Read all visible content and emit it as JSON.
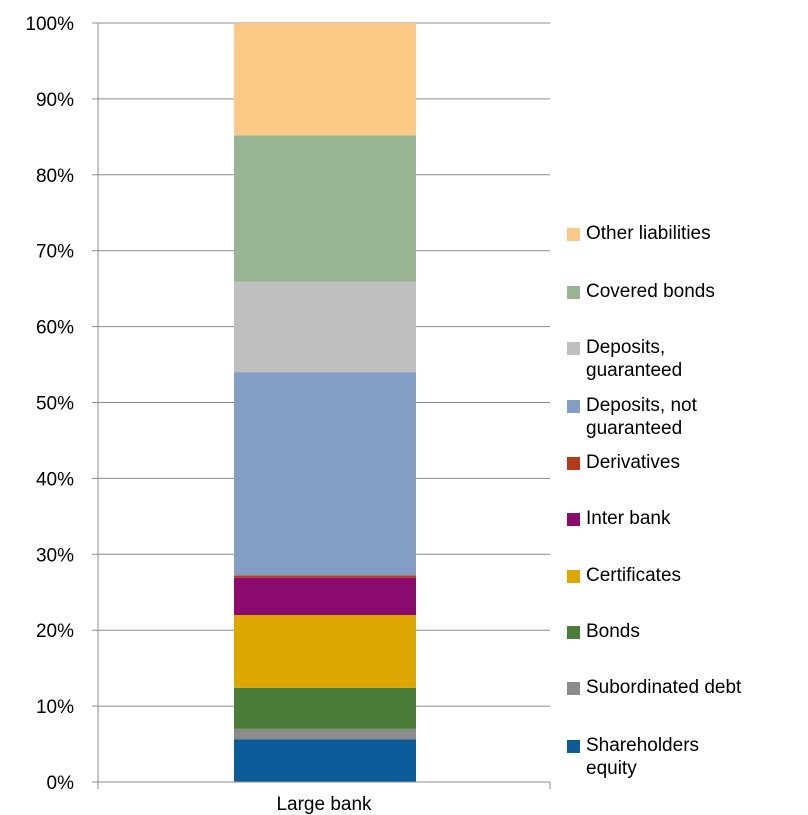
{
  "chart_data": {
    "type": "bar",
    "stacked": true,
    "percent": true,
    "categories": [
      "Large bank"
    ],
    "ylim": [
      0,
      100
    ],
    "yticks": [
      "0%",
      "10%",
      "20%",
      "30%",
      "40%",
      "50%",
      "60%",
      "70%",
      "80%",
      "90%",
      "100%"
    ],
    "grid": true,
    "legend_position": "right",
    "series": [
      {
        "name": "Shareholders equity",
        "values": [
          5.6
        ],
        "color": "#0b5d9a"
      },
      {
        "name": "Subordinated debt",
        "values": [
          1.4
        ],
        "color": "#8c8c8c"
      },
      {
        "name": "Bonds",
        "values": [
          5.4
        ],
        "color": "#4a7e38"
      },
      {
        "name": "Certificates",
        "values": [
          9.6
        ],
        "color": "#dea600"
      },
      {
        "name": "Inter bank",
        "values": [
          4.9
        ],
        "color": "#8b0a6e"
      },
      {
        "name": "Derivatives",
        "values": [
          0.3
        ],
        "color": "#b23b1d"
      },
      {
        "name": "Deposits, not guaranteed",
        "values": [
          26.8
        ],
        "color": "#849dc4"
      },
      {
        "name": "Deposits, guaranteed",
        "values": [
          11.9
        ],
        "color": "#bfbfbf"
      },
      {
        "name": "Covered bonds",
        "values": [
          19.3
        ],
        "color": "#98b493"
      },
      {
        "name": "Other liabilities",
        "values": [
          14.8
        ],
        "color": "#fbc985"
      }
    ]
  },
  "legend": [
    {
      "label": "Other liabilities",
      "color": "#fbc985"
    },
    {
      "label": "Covered bonds",
      "color": "#98b493"
    },
    {
      "label": "Deposits,\nguaranteed",
      "color": "#bfbfbf"
    },
    {
      "label": "Deposits, not\nguaranteed",
      "color": "#849dc4"
    },
    {
      "label": "Derivatives",
      "color": "#b23b1d"
    },
    {
      "label": "Inter bank",
      "color": "#8b0a6e"
    },
    {
      "label": "Certificates",
      "color": "#dea600"
    },
    {
      "label": "Bonds",
      "color": "#4a7e38"
    },
    {
      "label": "Subordinated debt",
      "color": "#8c8c8c"
    },
    {
      "label": "Shareholders\nequity",
      "color": "#0b5d9a"
    }
  ]
}
